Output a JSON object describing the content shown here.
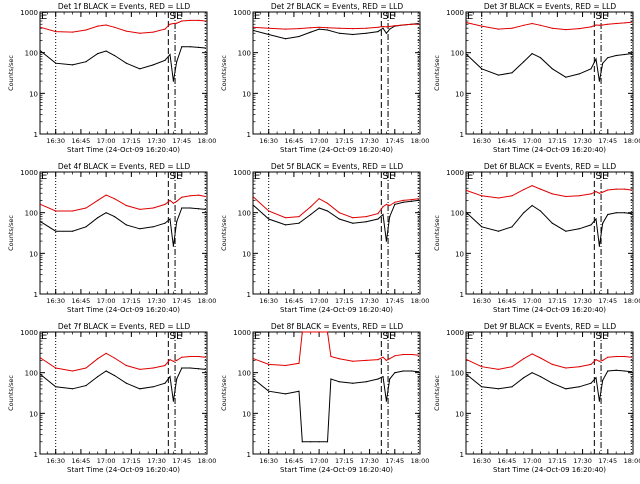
{
  "panel_template": {
    "y_tick_labels": [
      "1",
      "10",
      "100",
      "1000"
    ],
    "x_tick_labels": [
      "16:30",
      "16:45",
      "17:00",
      "17:15",
      "17:30",
      "17:45",
      "18:00"
    ],
    "ylabel": "Counts/sec",
    "xlabel": "Start Time (24-Oct-09 16:20:40)",
    "marker_E": "E",
    "marker_S": "S"
  },
  "colors": {
    "events": "#000000",
    "lld": "#e00000"
  },
  "chart_data": [
    {
      "type": "line",
      "title": "Det 1f BLACK = Events, RED = LLD",
      "xlabel": "Start Time (24-Oct-09 16:20:40)",
      "ylabel": "Counts/sec",
      "ylim": [
        1,
        1000
      ],
      "yscale": "log",
      "xlim": [
        "16:20:40",
        "18:00"
      ],
      "series": [
        {
          "name": "Events",
          "color": "#000000",
          "x": [
            "16:21",
            "16:30",
            "16:40",
            "16:48",
            "16:55",
            "17:00",
            "17:05",
            "17:12",
            "17:20",
            "17:28",
            "17:35",
            "17:38",
            "17:40",
            "17:42",
            "17:45",
            "17:50",
            "17:55",
            "17:59"
          ],
          "y": [
            110,
            55,
            50,
            60,
            95,
            110,
            85,
            55,
            40,
            50,
            65,
            90,
            20,
            60,
            140,
            140,
            135,
            130
          ]
        },
        {
          "name": "LLD",
          "color": "#e00000",
          "x": [
            "16:21",
            "16:30",
            "16:40",
            "16:48",
            "16:55",
            "17:00",
            "17:05",
            "17:12",
            "17:20",
            "17:28",
            "17:35",
            "17:38",
            "17:40",
            "17:42",
            "17:45",
            "17:50",
            "17:55",
            "17:59"
          ],
          "y": [
            420,
            330,
            320,
            360,
            450,
            480,
            420,
            340,
            300,
            320,
            380,
            500,
            520,
            530,
            600,
            620,
            620,
            600
          ]
        }
      ]
    },
    {
      "type": "line",
      "title": "Det 2f BLACK = Events, RED = LLD",
      "xlabel": "Start Time (24-Oct-09 16:20:40)",
      "ylabel": "Counts/sec",
      "ylim": [
        1,
        1000
      ],
      "yscale": "log",
      "xlim": [
        "16:20:40",
        "18:00"
      ],
      "series": [
        {
          "name": "Events",
          "color": "#000000",
          "x": [
            "16:21",
            "16:30",
            "16:40",
            "16:48",
            "16:55",
            "17:00",
            "17:05",
            "17:12",
            "17:20",
            "17:28",
            "17:35",
            "17:38",
            "17:40",
            "17:42",
            "17:45",
            "17:50",
            "17:55",
            "17:59"
          ],
          "y": [
            350,
            280,
            220,
            250,
            320,
            380,
            360,
            300,
            280,
            300,
            330,
            400,
            300,
            380,
            450,
            480,
            500,
            520
          ]
        },
        {
          "name": "LLD",
          "color": "#e00000",
          "x": [
            "16:21",
            "16:30",
            "16:40",
            "16:48",
            "16:55",
            "17:00",
            "17:05",
            "17:12",
            "17:20",
            "17:28",
            "17:35",
            "17:38",
            "17:40",
            "17:42",
            "17:45",
            "17:50",
            "17:55",
            "17:59"
          ],
          "y": [
            420,
            400,
            380,
            390,
            410,
            420,
            410,
            400,
            390,
            400,
            420,
            440,
            430,
            440,
            460,
            480,
            500,
            500
          ]
        }
      ]
    },
    {
      "type": "line",
      "title": "Det 3f BLACK = Events, RED = LLD",
      "xlabel": "Start Time (24-Oct-09 16:20:40)",
      "ylabel": "Counts/sec",
      "ylim": [
        1,
        1000
      ],
      "yscale": "log",
      "xlim": [
        "16:20:40",
        "18:00"
      ],
      "series": [
        {
          "name": "Events",
          "color": "#000000",
          "x": [
            "16:21",
            "16:30",
            "16:40",
            "16:48",
            "16:55",
            "17:00",
            "17:05",
            "17:12",
            "17:20",
            "17:28",
            "17:35",
            "17:38",
            "17:40",
            "17:42",
            "17:45",
            "17:50",
            "17:55",
            "17:59"
          ],
          "y": [
            90,
            40,
            28,
            32,
            60,
            95,
            75,
            40,
            25,
            30,
            40,
            70,
            20,
            55,
            75,
            85,
            90,
            95
          ]
        },
        {
          "name": "LLD",
          "color": "#e00000",
          "x": [
            "16:21",
            "16:30",
            "16:40",
            "16:48",
            "16:55",
            "17:00",
            "17:05",
            "17:12",
            "17:20",
            "17:28",
            "17:35",
            "17:38",
            "17:40",
            "17:42",
            "17:45",
            "17:50",
            "17:55",
            "17:59"
          ],
          "y": [
            550,
            450,
            380,
            400,
            470,
            520,
            470,
            400,
            370,
            390,
            430,
            480,
            470,
            480,
            500,
            520,
            540,
            560
          ]
        }
      ]
    },
    {
      "type": "line",
      "title": "Det 4f BLACK = Events, RED = LLD",
      "xlabel": "Start Time (24-Oct-09 16:20:40)",
      "ylabel": "Counts/sec",
      "ylim": [
        1,
        1000
      ],
      "yscale": "log",
      "xlim": [
        "16:20:40",
        "18:00"
      ],
      "series": [
        {
          "name": "Events",
          "color": "#000000",
          "x": [
            "16:21",
            "16:30",
            "16:40",
            "16:48",
            "16:55",
            "17:00",
            "17:05",
            "17:12",
            "17:20",
            "17:28",
            "17:35",
            "17:38",
            "17:40",
            "17:42",
            "17:45",
            "17:50",
            "17:55",
            "17:59"
          ],
          "y": [
            60,
            35,
            35,
            45,
            75,
            100,
            80,
            50,
            40,
            45,
            55,
            70,
            15,
            60,
            130,
            130,
            125,
            120
          ]
        },
        {
          "name": "LLD",
          "color": "#e00000",
          "x": [
            "16:21",
            "16:30",
            "16:40",
            "16:48",
            "16:55",
            "17:00",
            "17:05",
            "17:12",
            "17:20",
            "17:28",
            "17:35",
            "17:38",
            "17:40",
            "17:42",
            "17:45",
            "17:50",
            "17:55",
            "17:59"
          ],
          "y": [
            160,
            110,
            110,
            130,
            200,
            270,
            220,
            150,
            120,
            130,
            160,
            200,
            170,
            190,
            240,
            260,
            270,
            250
          ]
        }
      ]
    },
    {
      "type": "line",
      "title": "Det 5f BLACK = Events, RED = LLD",
      "xlabel": "Start Time (24-Oct-09 16:20:40)",
      "ylabel": "Counts/sec",
      "ylim": [
        1,
        1000
      ],
      "yscale": "log",
      "xlim": [
        "16:20:40",
        "18:00"
      ],
      "series": [
        {
          "name": "Events",
          "color": "#000000",
          "x": [
            "16:21",
            "16:30",
            "16:40",
            "16:48",
            "16:55",
            "17:00",
            "17:05",
            "17:12",
            "17:20",
            "17:28",
            "17:35",
            "17:38",
            "17:40",
            "17:42",
            "17:45",
            "17:50",
            "17:55",
            "17:59"
          ],
          "y": [
            150,
            70,
            50,
            55,
            90,
            130,
            110,
            70,
            55,
            60,
            70,
            90,
            20,
            80,
            160,
            180,
            190,
            200
          ]
        },
        {
          "name": "LLD",
          "color": "#e00000",
          "x": [
            "16:21",
            "16:30",
            "16:40",
            "16:48",
            "16:55",
            "17:00",
            "17:05",
            "17:12",
            "17:20",
            "17:28",
            "17:35",
            "17:38",
            "17:40",
            "17:42",
            "17:45",
            "17:50",
            "17:55",
            "17:59"
          ],
          "y": [
            240,
            110,
            75,
            80,
            140,
            220,
            170,
            100,
            75,
            80,
            95,
            140,
            160,
            150,
            180,
            200,
            210,
            220
          ]
        }
      ]
    },
    {
      "type": "line",
      "title": "Det 6f BLACK = Events, RED = LLD",
      "xlabel": "Start Time (24-Oct-09 16:20:40)",
      "ylabel": "Counts/sec",
      "ylim": [
        1,
        1000
      ],
      "yscale": "log",
      "xlim": [
        "16:20:40",
        "18:00"
      ],
      "series": [
        {
          "name": "Events",
          "color": "#000000",
          "x": [
            "16:21",
            "16:30",
            "16:40",
            "16:48",
            "16:55",
            "17:00",
            "17:05",
            "17:12",
            "17:20",
            "17:28",
            "17:35",
            "17:38",
            "17:40",
            "17:42",
            "17:45",
            "17:50",
            "17:55",
            "17:59"
          ],
          "y": [
            100,
            45,
            35,
            45,
            100,
            150,
            110,
            55,
            35,
            40,
            50,
            70,
            15,
            55,
            90,
            100,
            100,
            95
          ]
        },
        {
          "name": "LLD",
          "color": "#e00000",
          "x": [
            "16:21",
            "16:30",
            "16:40",
            "16:48",
            "16:55",
            "17:00",
            "17:05",
            "17:12",
            "17:20",
            "17:28",
            "17:35",
            "17:38",
            "17:40",
            "17:42",
            "17:45",
            "17:50",
            "17:55",
            "17:59"
          ],
          "y": [
            350,
            260,
            230,
            260,
            370,
            460,
            380,
            290,
            250,
            260,
            290,
            330,
            300,
            320,
            360,
            380,
            380,
            360
          ]
        }
      ]
    },
    {
      "type": "line",
      "title": "Det 7f BLACK = Events, RED = LLD",
      "xlabel": "Start Time (24-Oct-09 16:20:40)",
      "ylabel": "Counts/sec",
      "ylim": [
        1,
        1000
      ],
      "yscale": "log",
      "xlim": [
        "16:20:40",
        "18:00"
      ],
      "series": [
        {
          "name": "Events",
          "color": "#000000",
          "x": [
            "16:21",
            "16:30",
            "16:40",
            "16:48",
            "16:55",
            "17:00",
            "17:05",
            "17:12",
            "17:20",
            "17:28",
            "17:35",
            "17:38",
            "17:40",
            "17:42",
            "17:45",
            "17:50",
            "17:55",
            "17:59"
          ],
          "y": [
            90,
            45,
            40,
            48,
            80,
            110,
            85,
            55,
            40,
            45,
            55,
            80,
            20,
            70,
            130,
            130,
            125,
            120
          ]
        },
        {
          "name": "LLD",
          "color": "#e00000",
          "x": [
            "16:21",
            "16:30",
            "16:40",
            "16:48",
            "16:55",
            "17:00",
            "17:05",
            "17:12",
            "17:20",
            "17:28",
            "17:35",
            "17:38",
            "17:40",
            "17:42",
            "17:45",
            "17:50",
            "17:55",
            "17:59"
          ],
          "y": [
            230,
            130,
            110,
            130,
            220,
            300,
            230,
            150,
            120,
            130,
            150,
            210,
            190,
            200,
            240,
            250,
            250,
            240
          ]
        }
      ]
    },
    {
      "type": "line",
      "title": "Det 8f BLACK = Events, RED = LLD",
      "xlabel": "Start Time (24-Oct-09 16:20:40)",
      "ylabel": "Counts/sec",
      "ylim": [
        1,
        1000
      ],
      "yscale": "log",
      "xlim": [
        "16:20:40",
        "18:00"
      ],
      "series": [
        {
          "name": "Events",
          "color": "#000000",
          "x": [
            "16:21",
            "16:30",
            "16:40",
            "16:48",
            "16:50",
            "16:55",
            "17:00",
            "17:05",
            "17:07",
            "17:12",
            "17:20",
            "17:28",
            "17:35",
            "17:38",
            "17:40",
            "17:42",
            "17:45",
            "17:50",
            "17:55",
            "17:59"
          ],
          "y": [
            70,
            35,
            30,
            35,
            2,
            2,
            2,
            2,
            70,
            60,
            55,
            60,
            70,
            80,
            20,
            70,
            100,
            110,
            110,
            105
          ]
        },
        {
          "name": "LLD",
          "color": "#e00000",
          "x": [
            "16:21",
            "16:30",
            "16:40",
            "16:48",
            "16:50",
            "16:55",
            "17:00",
            "17:05",
            "17:07",
            "17:12",
            "17:20",
            "17:28",
            "17:35",
            "17:38",
            "17:40",
            "17:42",
            "17:45",
            "17:50",
            "17:55",
            "17:59"
          ],
          "y": [
            220,
            160,
            150,
            170,
            1000,
            1000,
            1000,
            1000,
            250,
            220,
            190,
            200,
            210,
            240,
            200,
            220,
            260,
            280,
            280,
            270
          ]
        }
      ]
    },
    {
      "type": "line",
      "title": "Det 9f BLACK = Events, RED = LLD",
      "xlabel": "Start Time (24-Oct-09 16:20:40)",
      "ylabel": "Counts/sec",
      "ylim": [
        1,
        1000
      ],
      "yscale": "log",
      "xlim": [
        "16:20:40",
        "18:00"
      ],
      "series": [
        {
          "name": "Events",
          "color": "#000000",
          "x": [
            "16:21",
            "16:30",
            "16:40",
            "16:48",
            "16:55",
            "17:00",
            "17:05",
            "17:12",
            "17:20",
            "17:28",
            "17:35",
            "17:38",
            "17:40",
            "17:42",
            "17:45",
            "17:50",
            "17:55",
            "17:59"
          ],
          "y": [
            90,
            45,
            40,
            45,
            75,
            100,
            80,
            55,
            40,
            45,
            55,
            75,
            20,
            65,
            110,
            115,
            110,
            105
          ]
        },
        {
          "name": "LLD",
          "color": "#e00000",
          "x": [
            "16:21",
            "16:30",
            "16:40",
            "16:48",
            "16:55",
            "17:00",
            "17:05",
            "17:12",
            "17:20",
            "17:28",
            "17:35",
            "17:38",
            "17:40",
            "17:42",
            "17:45",
            "17:50",
            "17:55",
            "17:59"
          ],
          "y": [
            210,
            140,
            120,
            140,
            220,
            290,
            230,
            160,
            130,
            140,
            160,
            210,
            190,
            200,
            240,
            250,
            250,
            240
          ]
        }
      ]
    }
  ]
}
